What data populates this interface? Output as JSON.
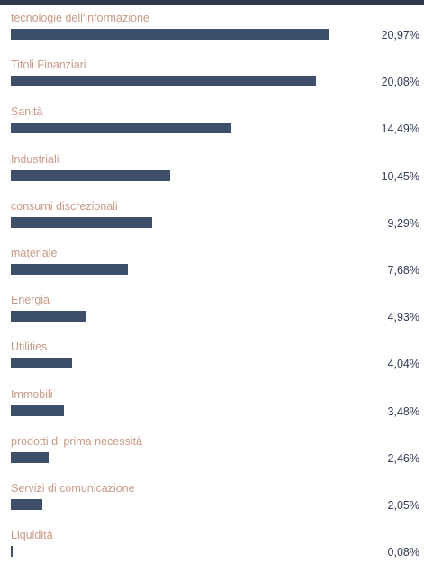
{
  "chart_data": {
    "type": "bar",
    "orientation": "horizontal",
    "title": "",
    "xlabel": "",
    "ylabel": "",
    "categories": [
      "tecnologie dell'informazione",
      "Titoli Finanziari",
      "Sanità",
      "Industriali",
      "consumi discrezionali",
      "materiale",
      "Energia",
      "Utilities",
      "Immobili",
      "prodotti di prima necessità",
      "Servizi di comunicazione",
      "Liquidità"
    ],
    "values": [
      20.97,
      20.08,
      14.49,
      10.45,
      9.29,
      7.68,
      4.93,
      4.04,
      3.48,
      2.46,
      2.05,
      0.08
    ],
    "value_labels": [
      "20,97%",
      "20,08%",
      "14,49%",
      "10,45%",
      "9,29%",
      "7,68%",
      "4,93%",
      "4,04%",
      "3,48%",
      "2,46%",
      "2,05%",
      "0,08%"
    ],
    "unit": "%",
    "colors": {
      "bar": "#3d4f6b",
      "label": "#c89a86",
      "value": "#2f3a56",
      "top_bar": "#2f3a4a"
    }
  }
}
